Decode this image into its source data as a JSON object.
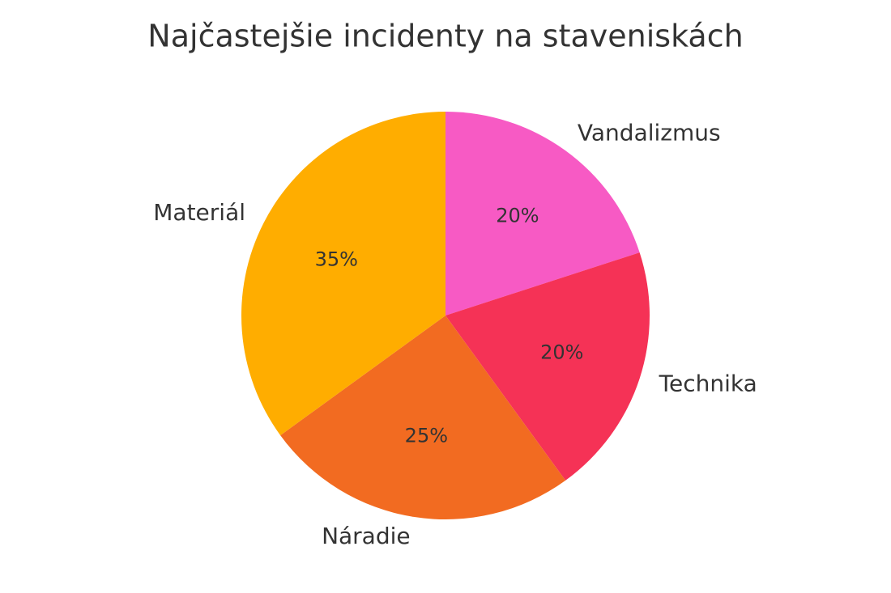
{
  "chart_data": {
    "type": "pie",
    "title": "Najčastejšie incidenty na staveniskách",
    "categories": [
      "Vandalizmus",
      "Technika",
      "Náradie",
      "Materiál"
    ],
    "values": [
      20,
      20,
      25,
      35
    ],
    "value_labels": [
      "20%",
      "20%",
      "25%",
      "35%"
    ],
    "colors": [
      "#f75ac4",
      "#f53256",
      "#f26b21",
      "#ffad00"
    ]
  }
}
